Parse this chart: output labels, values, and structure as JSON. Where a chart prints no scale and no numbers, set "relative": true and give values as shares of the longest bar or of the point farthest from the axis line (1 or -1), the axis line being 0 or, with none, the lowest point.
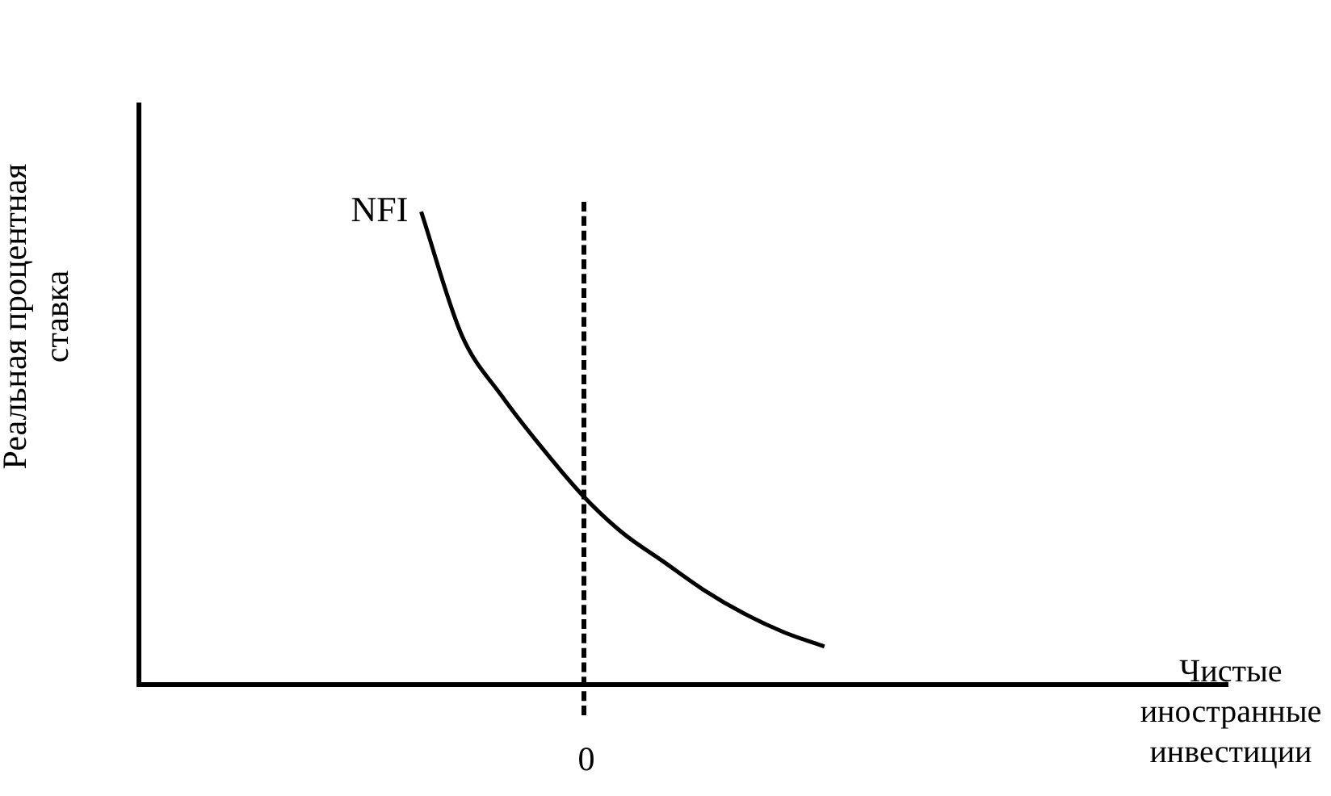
{
  "chart_data": {
    "type": "line",
    "relative": true,
    "xlabel": "Чистые иностранные инвестиции",
    "ylabel": "Реальная процентная ставка",
    "categories": [
      null,
      null,
      null,
      null,
      null,
      null,
      null,
      null,
      null,
      null,
      null,
      null,
      null,
      null,
      null,
      null,
      null,
      null,
      null,
      null,
      null,
      null,
      null,
      null,
      null,
      null,
      null,
      null
    ],
    "series": [
      {
        "name": "NFI",
        "color": "#000000",
        "line_style": "solid",
        "values": [
          null,
          null,
          null,
          null,
          null,
          null,
          null,
          1,
          0.74,
          0.61,
          0.5,
          0.4,
          0.32,
          0.26,
          0.2,
          0.15,
          0.11,
          0.08,
          null,
          null,
          null,
          null,
          null,
          null,
          null,
          null,
          null,
          null
        ]
      }
    ],
    "annotations": [
      "0"
    ],
    "grid": false,
    "legend": false,
    "marker": "none"
  }
}
